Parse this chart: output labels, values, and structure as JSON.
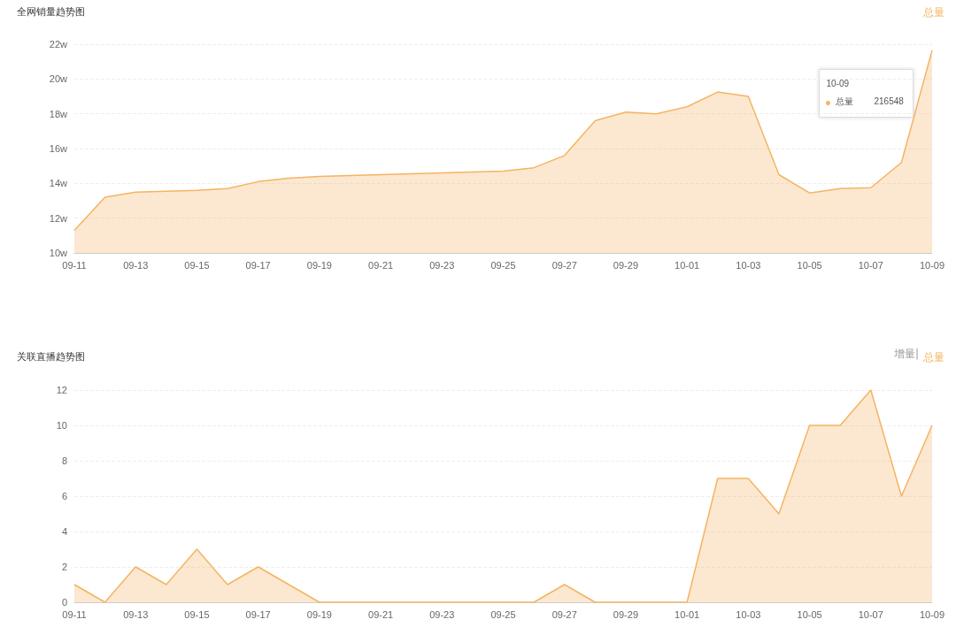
{
  "chart_data": [
    {
      "type": "area",
      "title": "全网销量趋势图",
      "categories": [
        "09-11",
        null,
        "09-13",
        null,
        "09-15",
        null,
        "09-17",
        null,
        "09-19",
        null,
        "09-21",
        null,
        "09-23",
        null,
        "09-25",
        null,
        "09-27",
        null,
        "09-29",
        null,
        "10-01",
        null,
        "10-03",
        null,
        "10-05",
        null,
        "10-07",
        null,
        "10-09"
      ],
      "series": [
        {
          "name": "总量",
          "color": "#f4b462",
          "values": [
            11.3,
            13.2,
            13.5,
            13.55,
            13.6,
            13.7,
            14.1,
            14.3,
            14.4,
            14.45,
            14.5,
            14.55,
            14.6,
            14.65,
            14.7,
            14.9,
            15.6,
            17.6,
            18.1,
            18.0,
            18.4,
            19.25,
            19.0,
            14.5,
            13.45,
            13.7,
            13.75,
            15.2,
            21.65
          ]
        }
      ],
      "ylim": [
        10,
        22
      ],
      "yticks": [
        {
          "value": 10,
          "label": "10w"
        },
        {
          "value": 12,
          "label": "12w"
        },
        {
          "value": 14,
          "label": "14w"
        },
        {
          "value": 16,
          "label": "16w"
        },
        {
          "value": 18,
          "label": "18w"
        },
        {
          "value": 20,
          "label": "20w"
        },
        {
          "value": 22,
          "label": "22w"
        }
      ],
      "grid": "y",
      "legend": "top right",
      "marker": "none",
      "line_style": "solid",
      "annotations": [
        "10-09",
        "总量",
        "216548"
      ]
    },
    {
      "type": "area",
      "title": "关联直播趋势图",
      "categories": [
        "09-11",
        null,
        "09-13",
        null,
        "09-15",
        null,
        "09-17",
        null,
        "09-19",
        null,
        "09-21",
        null,
        "09-23",
        null,
        "09-25",
        null,
        "09-27",
        null,
        "09-29",
        null,
        "10-01",
        null,
        "10-03",
        null,
        "10-05",
        null,
        "10-07",
        null,
        "10-09"
      ],
      "series": [
        {
          "name": "总量",
          "color": "#f4b462",
          "values": [
            1,
            0,
            2,
            1,
            3,
            1,
            2,
            1,
            0,
            0,
            0,
            0,
            0,
            0,
            0,
            0,
            1,
            0,
            0,
            0,
            0,
            7,
            7,
            5,
            10,
            10,
            12,
            6,
            10
          ]
        }
      ],
      "ylim": [
        0,
        12
      ],
      "yticks": [
        0,
        2,
        4,
        6,
        8,
        10,
        12
      ],
      "grid": "y",
      "legend": "top right",
      "marker": "none",
      "line_style": "solid",
      "annotations": [
        "增量|"
      ]
    }
  ]
}
